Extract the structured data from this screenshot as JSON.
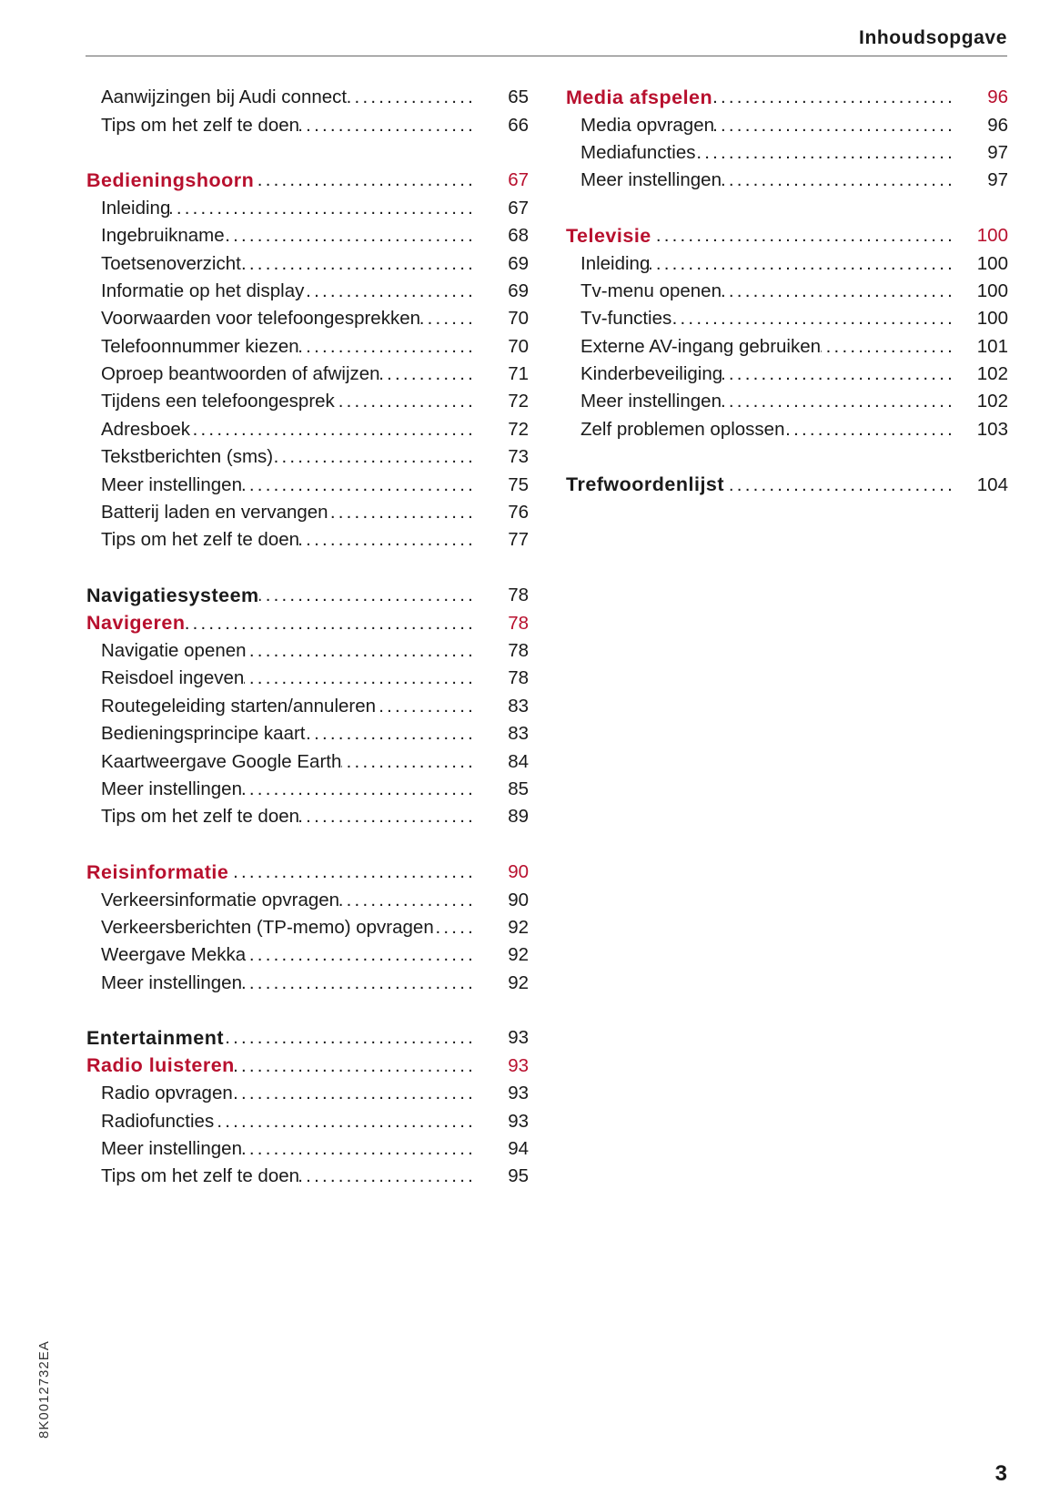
{
  "header": {
    "title": "Inhoudsopgave"
  },
  "colors": {
    "accent_red": "#b8102e",
    "text": "#1a1a1a"
  },
  "left_column": [
    [
      {
        "type": "item",
        "label": "Aanwijzingen bij Audi connect",
        "page": "65"
      },
      {
        "type": "item",
        "label": "Tips om het zelf te doen",
        "page": "66"
      }
    ],
    [
      {
        "type": "head-red",
        "label": "Bedieningshoorn",
        "page": "67"
      },
      {
        "type": "item",
        "label": "Inleiding",
        "page": "67"
      },
      {
        "type": "item",
        "label": "Ingebruikname",
        "page": "68"
      },
      {
        "type": "item",
        "label": "Toetsenoverzicht",
        "page": "69"
      },
      {
        "type": "item",
        "label": "Informatie op het display",
        "page": "69"
      },
      {
        "type": "item",
        "label": "Voorwaarden voor telefoongesprekken",
        "page": "70"
      },
      {
        "type": "item",
        "label": "Telefoonnummer kiezen",
        "page": "70"
      },
      {
        "type": "item",
        "label": "Oproep beantwoorden of afwijzen",
        "page": "71"
      },
      {
        "type": "item",
        "label": "Tijdens een telefoongesprek",
        "page": "72"
      },
      {
        "type": "item",
        "label": "Adresboek",
        "page": "72"
      },
      {
        "type": "item",
        "label": "Tekstberichten (sms)",
        "page": "73"
      },
      {
        "type": "item",
        "label": "Meer instellingen",
        "page": "75"
      },
      {
        "type": "item",
        "label": "Batterij laden en vervangen",
        "page": "76"
      },
      {
        "type": "item",
        "label": "Tips om het zelf te doen",
        "page": "77"
      }
    ],
    [
      {
        "type": "head",
        "label": "Navigatiesysteem",
        "page": "78"
      },
      {
        "type": "head-red",
        "label": "Navigeren",
        "page": "78"
      },
      {
        "type": "item",
        "label": "Navigatie openen",
        "page": "78"
      },
      {
        "type": "item",
        "label": "Reisdoel ingeven",
        "page": "78"
      },
      {
        "type": "item",
        "label": "Routegeleiding starten/annuleren",
        "page": "83"
      },
      {
        "type": "item",
        "label": "Bedieningsprincipe kaart",
        "page": "83"
      },
      {
        "type": "item",
        "label": "Kaartweergave Google Earth",
        "page": "84"
      },
      {
        "type": "item",
        "label": "Meer instellingen",
        "page": "85"
      },
      {
        "type": "item",
        "label": "Tips om het zelf te doen",
        "page": "89"
      }
    ],
    [
      {
        "type": "head-red",
        "label": "Reisinformatie",
        "page": "90"
      },
      {
        "type": "item",
        "label": "Verkeersinformatie opvragen",
        "page": "90"
      },
      {
        "type": "item",
        "label": "Verkeersberichten (TP-memo) opvragen",
        "page": "92"
      },
      {
        "type": "item",
        "label": "Weergave Mekka",
        "page": "92"
      },
      {
        "type": "item",
        "label": "Meer instellingen",
        "page": "92"
      }
    ],
    [
      {
        "type": "head",
        "label": "Entertainment",
        "page": "93"
      },
      {
        "type": "head-red",
        "label": "Radio luisteren",
        "page": "93"
      },
      {
        "type": "item",
        "label": "Radio opvragen",
        "page": "93"
      },
      {
        "type": "item",
        "label": "Radiofuncties",
        "page": "93"
      },
      {
        "type": "item",
        "label": "Meer instellingen",
        "page": "94"
      },
      {
        "type": "item",
        "label": "Tips om het zelf te doen",
        "page": "95"
      }
    ]
  ],
  "right_column": [
    [
      {
        "type": "head-red",
        "label": "Media afspelen",
        "page": "96"
      },
      {
        "type": "item",
        "label": "Media opvragen",
        "page": "96"
      },
      {
        "type": "item",
        "label": "Mediafuncties",
        "page": "97"
      },
      {
        "type": "item",
        "label": "Meer instellingen",
        "page": "97"
      }
    ],
    [
      {
        "type": "head-red",
        "label": "Televisie",
        "page": "100"
      },
      {
        "type": "item",
        "label": "Inleiding",
        "page": "100"
      },
      {
        "type": "item",
        "label": "Tv-menu openen",
        "page": "100"
      },
      {
        "type": "item",
        "label": "Tv-functies",
        "page": "100"
      },
      {
        "type": "item",
        "label": "Externe AV-ingang gebruiken",
        "page": "101"
      },
      {
        "type": "item",
        "label": "Kinderbeveiliging",
        "page": "102"
      },
      {
        "type": "item",
        "label": "Meer instellingen",
        "page": "102"
      },
      {
        "type": "item",
        "label": "Zelf problemen oplossen",
        "page": "103"
      }
    ],
    [
      {
        "type": "head",
        "label": "Trefwoordenlijst",
        "page": "104"
      }
    ]
  ],
  "footer": {
    "doc_code": "8K0012732EA",
    "page_number": "3"
  }
}
